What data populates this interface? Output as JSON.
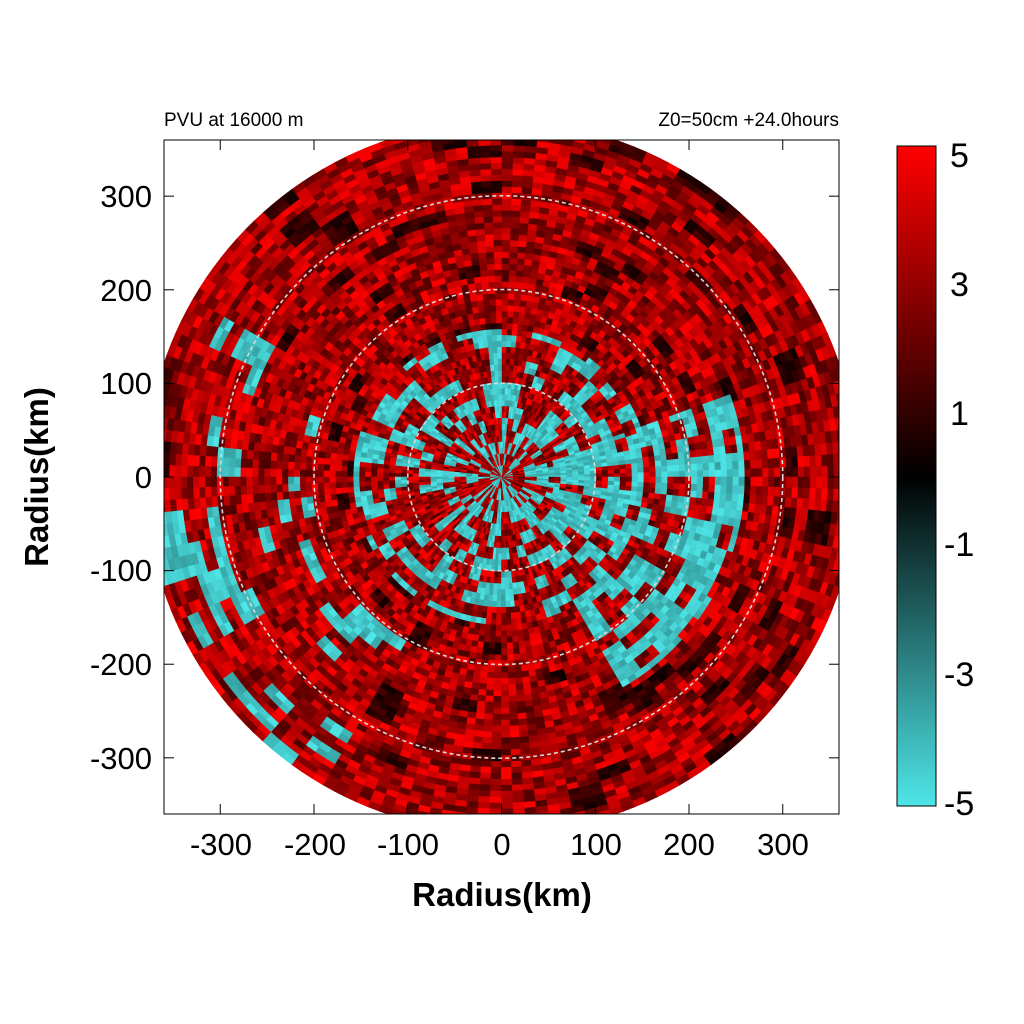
{
  "chart_data": {
    "type": "heatmap",
    "title_left": "PVU at 16000 m",
    "title_right": "Z0=50cm  +24.0hours",
    "xlabel": "Radius(km)",
    "ylabel": "Radius(km)",
    "xlim": [
      -360,
      360
    ],
    "ylim": [
      -360,
      360
    ],
    "xticks": [
      "-300",
      "-200",
      "-100",
      "0",
      "100",
      "200",
      "300"
    ],
    "yticks": [
      "300",
      "200",
      "100",
      "0",
      "-100",
      "-200",
      "-300"
    ],
    "xtick_values": [
      -300,
      -200,
      -100,
      0,
      100,
      200,
      300
    ],
    "ytick_values": [
      300,
      200,
      100,
      0,
      -100,
      -200,
      -300
    ],
    "domain_radius_km": 380,
    "reference_circles_km": [
      100,
      200,
      300
    ],
    "colorbar": {
      "min": -5,
      "max": 5,
      "tick_values": [
        5,
        3,
        1,
        -1,
        -3,
        -5
      ],
      "tick_labels": [
        "5",
        "3",
        "1",
        "-1",
        "-3",
        "-5"
      ],
      "colors": {
        "low": "#4ee6e8",
        "mid": "#000000",
        "high": "#ff0000"
      }
    },
    "field_description_values": {
      "dominant_value": 5,
      "negative_patch_value": -5
    }
  }
}
